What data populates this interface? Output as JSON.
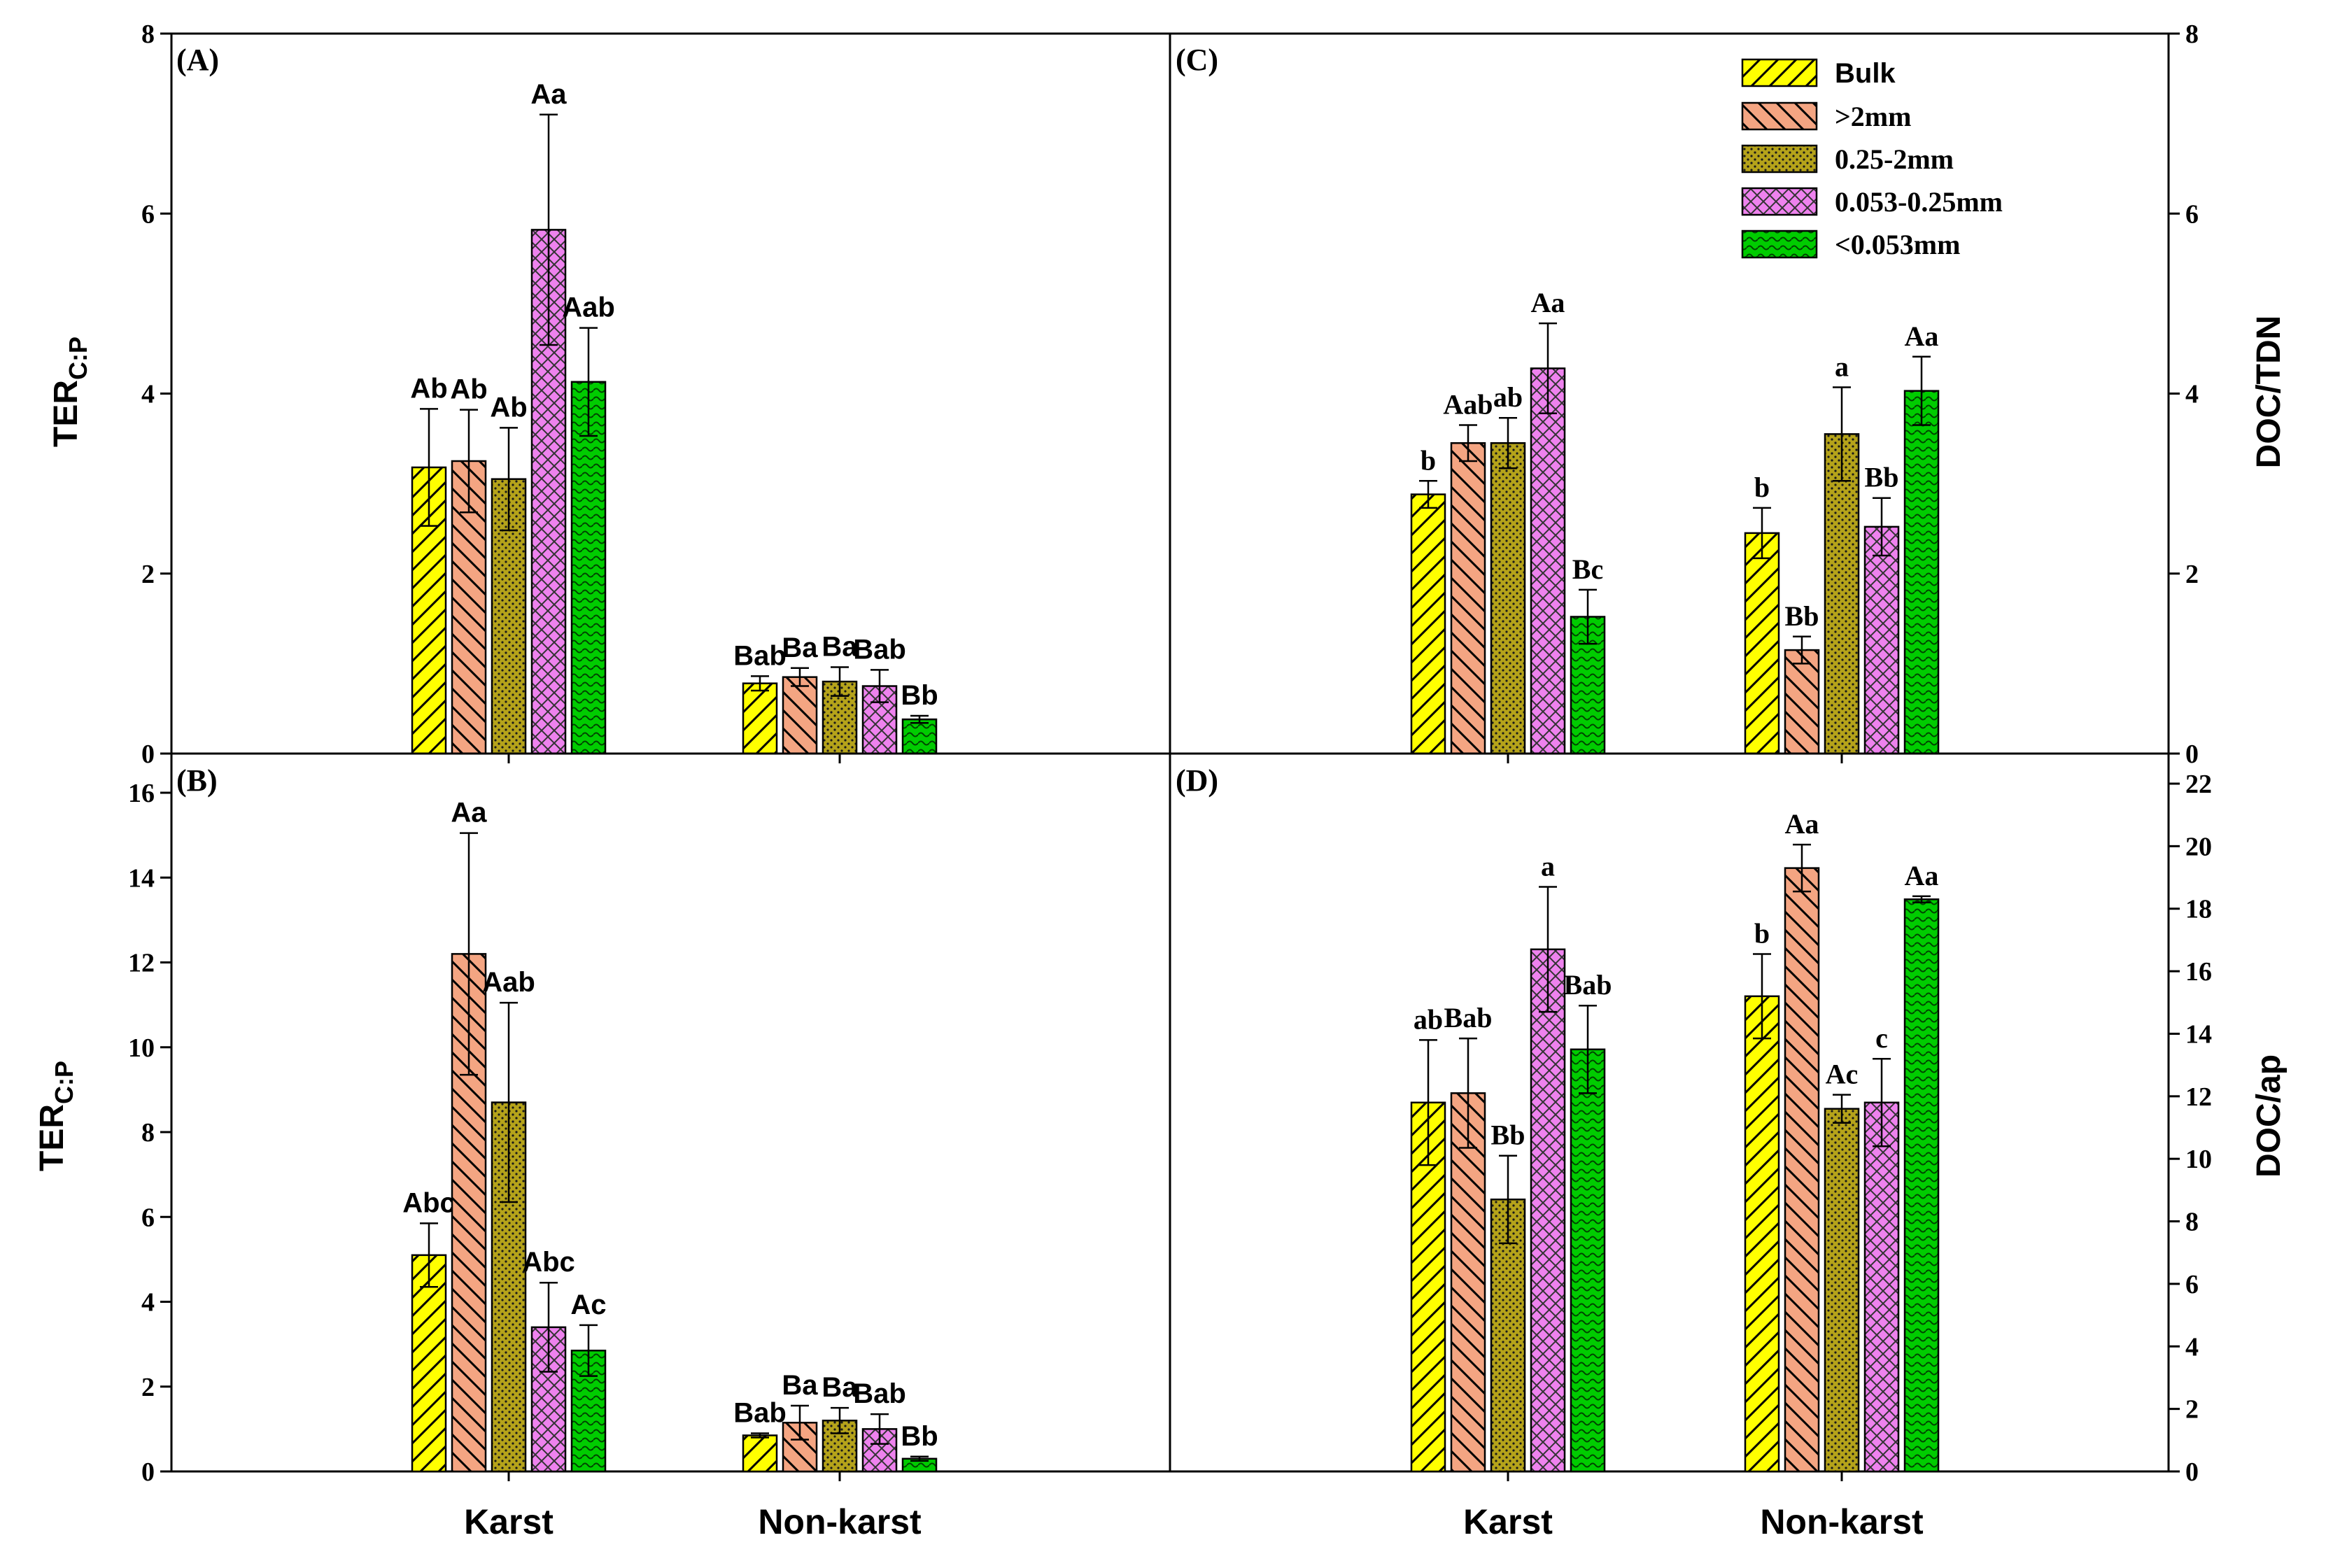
{
  "legend": {
    "entries": [
      "Bulk",
      ">2mm",
      "0.25-2mm",
      "0.053-0.25mm",
      "<0.053mm"
    ],
    "colors": [
      "#ffff00",
      "#f4a582",
      "#b5a31a",
      "#ee82ee",
      "#00cc00"
    ],
    "patterns": [
      "diag-up",
      "diag-down",
      "dots",
      "cross",
      "waves"
    ]
  },
  "chart_data": [
    {
      "panel": "(A)",
      "type": "bar",
      "ylabel_main": "TER",
      "ylabel_sub": "C:P",
      "ylim": [
        0,
        8
      ],
      "yticks": [
        0,
        2,
        4,
        6,
        8
      ],
      "categories": [
        "Karst",
        "Non-karst"
      ],
      "xlabels_shown": false,
      "series": [
        {
          "name": "Bulk",
          "values": [
            3.18,
            0.78
          ],
          "errors": [
            0.65,
            0.08
          ],
          "labels": [
            "Ab",
            "Bab"
          ]
        },
        {
          "name": ">2mm",
          "values": [
            3.25,
            0.85
          ],
          "errors": [
            0.57,
            0.1
          ],
          "labels": [
            "Ab",
            "Ba"
          ]
        },
        {
          "name": "0.25-2mm",
          "values": [
            3.05,
            0.8
          ],
          "errors": [
            0.57,
            0.16
          ],
          "labels": [
            "Ab",
            "Ba"
          ]
        },
        {
          "name": "0.053-0.25mm",
          "values": [
            5.82,
            0.75
          ],
          "errors": [
            1.28,
            0.18
          ],
          "labels": [
            "Aa",
            "Bab"
          ]
        },
        {
          "name": "<0.053mm",
          "values": [
            4.13,
            0.38
          ],
          "errors": [
            0.6,
            0.04
          ],
          "labels": [
            "Aab",
            "Bb"
          ]
        }
      ]
    },
    {
      "panel": "(B)",
      "type": "bar",
      "ylabel_main": "TER",
      "ylabel_sub": "C:P",
      "ylim": [
        0,
        16
      ],
      "yticks": [
        0,
        2,
        4,
        6,
        8,
        10,
        12,
        14,
        16
      ],
      "categories": [
        "Karst",
        "Non-karst"
      ],
      "xlabels_shown": true,
      "series": [
        {
          "name": "Bulk",
          "values": [
            5.1,
            0.85
          ],
          "errors": [
            0.75,
            0.05
          ],
          "labels": [
            "Abc",
            "Bab"
          ]
        },
        {
          "name": ">2mm",
          "values": [
            12.2,
            1.15
          ],
          "errors": [
            2.85,
            0.4
          ],
          "labels": [
            "Aa",
            "Ba"
          ]
        },
        {
          "name": "0.25-2mm",
          "values": [
            8.7,
            1.2
          ],
          "errors": [
            2.35,
            0.3
          ],
          "labels": [
            "Aab",
            "Ba"
          ]
        },
        {
          "name": "0.053-0.25mm",
          "values": [
            3.4,
            1.0
          ],
          "errors": [
            1.05,
            0.35
          ],
          "labels": [
            "Abc",
            "Bab"
          ]
        },
        {
          "name": "<0.053mm",
          "values": [
            2.85,
            0.3
          ],
          "errors": [
            0.6,
            0.05
          ],
          "labels": [
            "Ac",
            "Bb"
          ]
        }
      ]
    },
    {
      "panel": "(C)",
      "type": "bar",
      "ylabel_main": "DOC/TDN",
      "ylim": [
        0,
        8
      ],
      "yticks": [
        0,
        2,
        4,
        6,
        8
      ],
      "categories": [
        "Karst",
        "Non-karst"
      ],
      "xlabels_shown": false,
      "series": [
        {
          "name": "Bulk",
          "values": [
            2.88,
            2.45
          ],
          "errors": [
            0.15,
            0.28
          ],
          "labels": [
            "b",
            "b"
          ]
        },
        {
          "name": ">2mm",
          "values": [
            3.45,
            1.15
          ],
          "errors": [
            0.2,
            0.15
          ],
          "labels": [
            "Aab",
            "Bb"
          ]
        },
        {
          "name": "0.25-2mm",
          "values": [
            3.45,
            3.55
          ],
          "errors": [
            0.28,
            0.52
          ],
          "labels": [
            "ab",
            "a"
          ]
        },
        {
          "name": "0.053-0.25mm",
          "values": [
            4.28,
            2.52
          ],
          "errors": [
            0.5,
            0.32
          ],
          "labels": [
            "Aa",
            "Bb"
          ]
        },
        {
          "name": "<0.053mm",
          "values": [
            1.52,
            4.03
          ],
          "errors": [
            0.3,
            0.38
          ],
          "labels": [
            "Bc",
            "Aa"
          ]
        }
      ]
    },
    {
      "panel": "(D)",
      "type": "bar",
      "ylabel_main": "DOC/ap",
      "ylim": [
        0,
        22
      ],
      "yticks": [
        0,
        2,
        4,
        6,
        8,
        10,
        12,
        14,
        16,
        18,
        20,
        22
      ],
      "categories": [
        "Karst",
        "Non-karst"
      ],
      "xlabels_shown": true,
      "series": [
        {
          "name": "Bulk",
          "values": [
            11.8,
            15.2
          ],
          "errors": [
            2.0,
            1.35
          ],
          "labels": [
            "ab",
            "b"
          ]
        },
        {
          "name": ">2mm",
          "values": [
            12.1,
            19.3
          ],
          "errors": [
            1.75,
            0.75
          ],
          "labels": [
            "Bab",
            "Aa"
          ]
        },
        {
          "name": "0.25-2mm",
          "values": [
            8.7,
            11.6
          ],
          "errors": [
            1.4,
            0.45
          ],
          "labels": [
            "Bb",
            "Ac"
          ]
        },
        {
          "name": "0.053-0.25mm",
          "values": [
            16.7,
            11.8
          ],
          "errors": [
            2.0,
            1.4
          ],
          "labels": [
            "a",
            "c"
          ]
        },
        {
          "name": "<0.053mm",
          "values": [
            13.5,
            18.3
          ],
          "errors": [
            1.4,
            0.1
          ],
          "labels": [
            "Bab",
            "Aa"
          ]
        }
      ]
    }
  ]
}
